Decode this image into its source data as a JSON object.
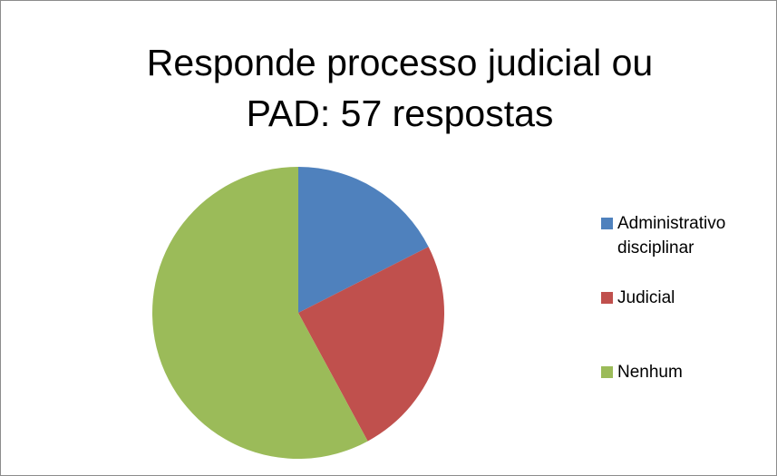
{
  "chart_data": {
    "type": "pie",
    "title": "Responde processo judicial ou PAD: 57 respostas",
    "categories": [
      "Administrativo disciplinar",
      "Judicial",
      "Nenhum"
    ],
    "values": [
      10,
      14,
      33
    ],
    "colors": [
      "#4f81bd",
      "#c0504d",
      "#9bbb59"
    ],
    "legend": "right"
  }
}
